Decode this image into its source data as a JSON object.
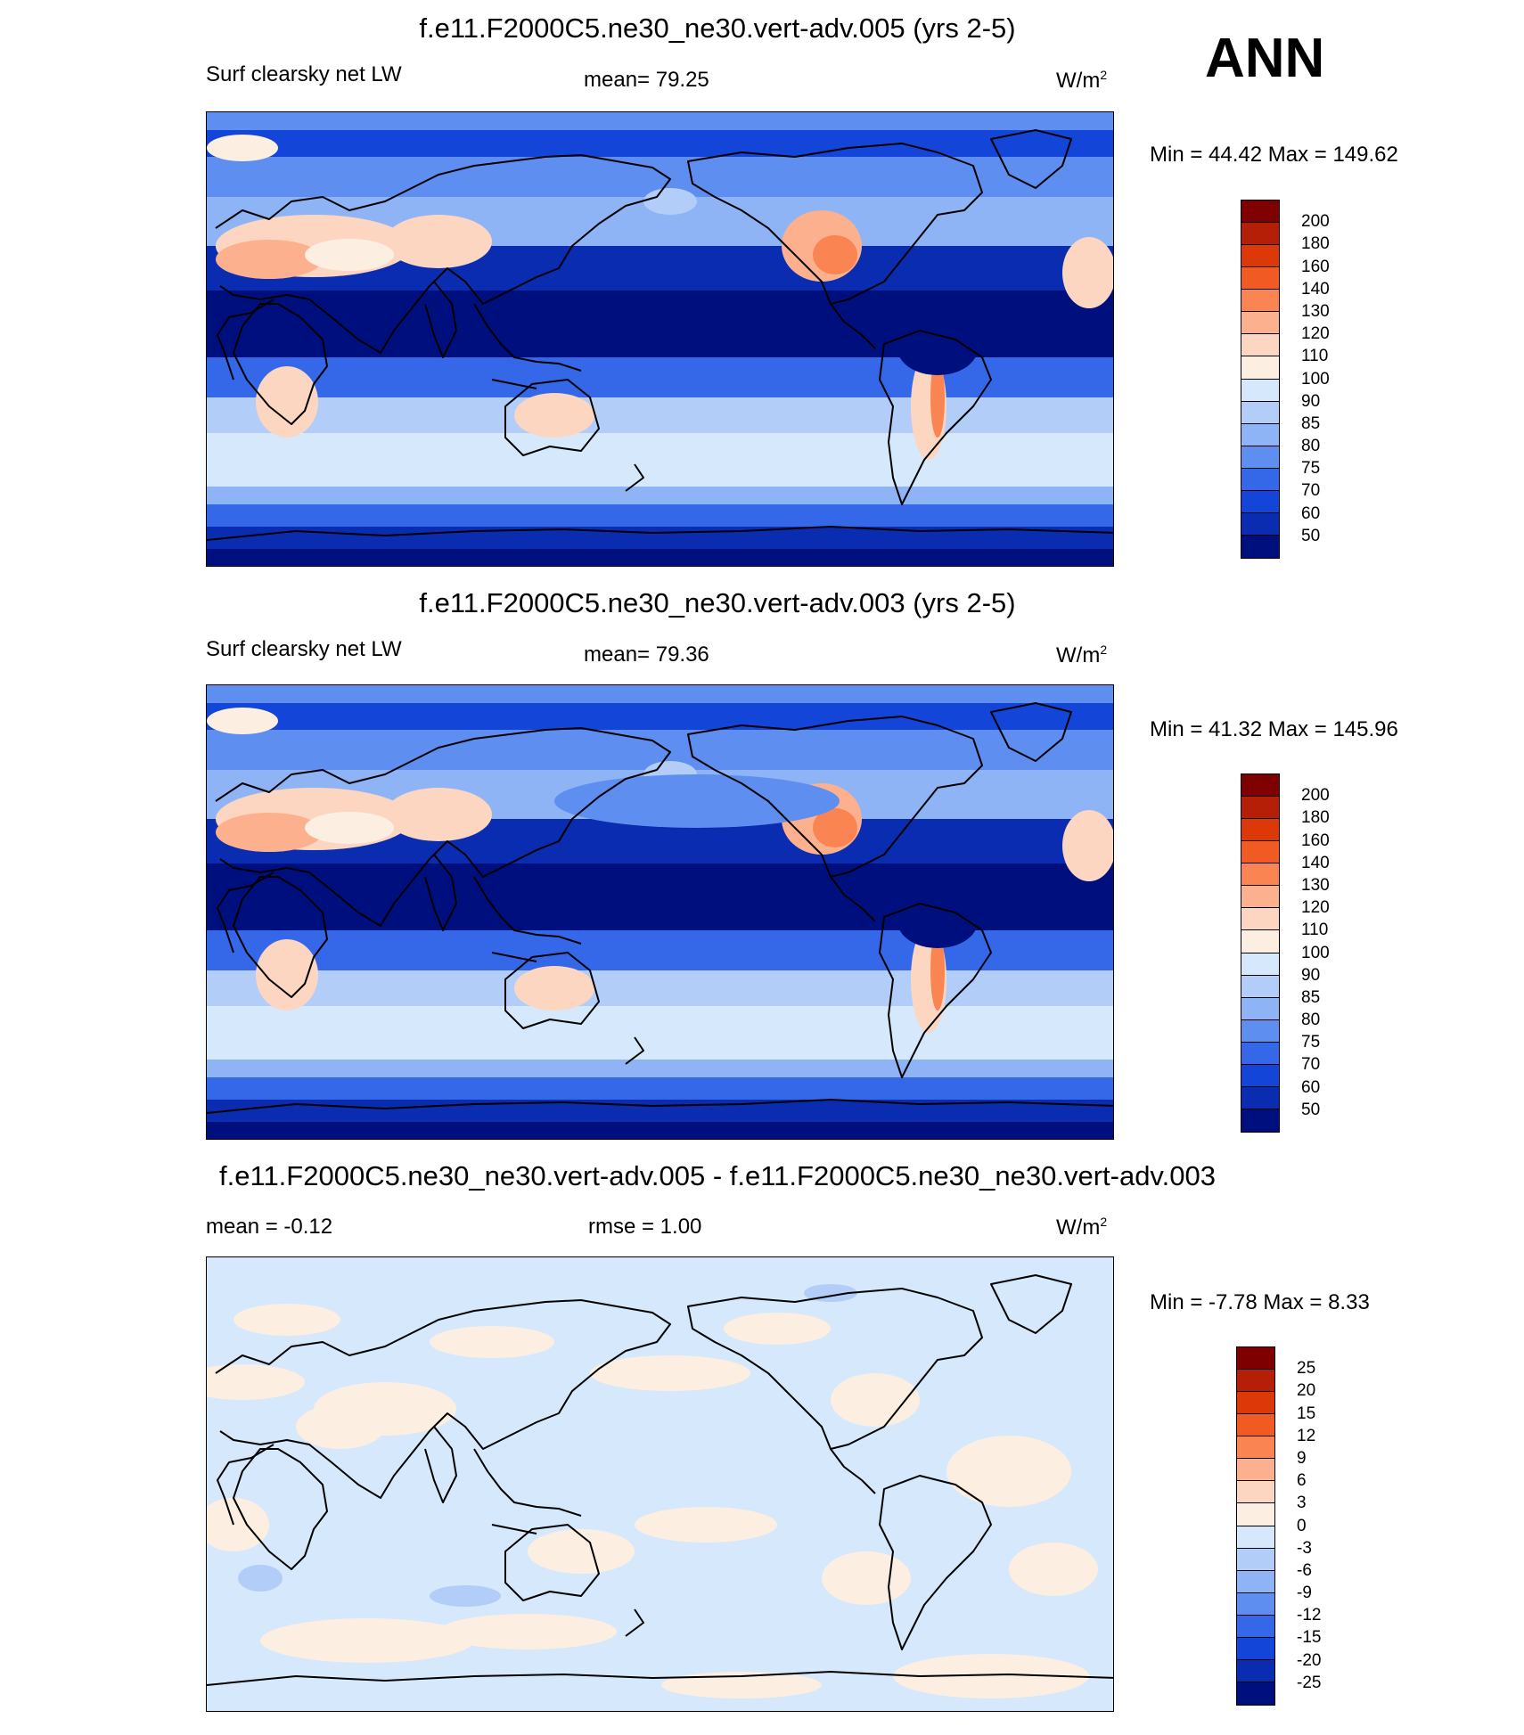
{
  "season": "ANN",
  "panels": [
    {
      "title": "f.e11.F2000C5.ne30_ne30.vert-adv.005 (yrs 2-5)",
      "left_label": "Surf clearsky net LW",
      "center_label": "mean=  79.25",
      "units": "W/m",
      "units_sup": "2",
      "minmax": "Min =  44.42 Max = 149.62",
      "colorbar": "abs",
      "style": "a"
    },
    {
      "title": "f.e11.F2000C5.ne30_ne30.vert-adv.003 (yrs 2-5)",
      "left_label": "Surf clearsky net LW",
      "center_label": "mean=  79.36",
      "units": "W/m",
      "units_sup": "2",
      "minmax": "Min =  41.32 Max = 145.96",
      "colorbar": "abs",
      "style": "b"
    },
    {
      "title": "f.e11.F2000C5.ne30_ne30.vert-adv.005 - f.e11.F2000C5.ne30_ne30.vert-adv.003",
      "left_label": "mean =  -0.12",
      "center_label": "rmse =   1.00",
      "units": "W/m",
      "units_sup": "2",
      "minmax": "Min =  -7.78 Max =   8.33",
      "colorbar": "diff",
      "style": "diff"
    }
  ],
  "colorbars": {
    "abs": {
      "colors": [
        "#7e0000",
        "#b51f08",
        "#dc3808",
        "#f25a24",
        "#fb8552",
        "#fdb08e",
        "#fdd6c2",
        "#fdeee2",
        "#d6e8fb",
        "#b2cdf8",
        "#8eb4f6",
        "#5d8ef0",
        "#3568e8",
        "#1346d8",
        "#0a2cb0",
        "#000f7e"
      ],
      "labels": [
        "200",
        "180",
        "160",
        "140",
        "130",
        "120",
        "110",
        "100",
        "90",
        "85",
        "80",
        "75",
        "70",
        "60",
        "50"
      ]
    },
    "diff": {
      "colors": [
        "#7e0000",
        "#b51f08",
        "#dc3808",
        "#f25a24",
        "#fb8552",
        "#fdb08e",
        "#fdd6c2",
        "#fdeee2",
        "#d6e8fb",
        "#b2cdf8",
        "#8eb4f6",
        "#5d8ef0",
        "#3568e8",
        "#1346d8",
        "#0a2cb0",
        "#000f7e"
      ],
      "labels": [
        "25",
        "20",
        "15",
        "12",
        "9",
        "6",
        "3",
        "0",
        "-3",
        "-6",
        "-9",
        "-12",
        "-15",
        "-20",
        "-25"
      ]
    }
  }
}
